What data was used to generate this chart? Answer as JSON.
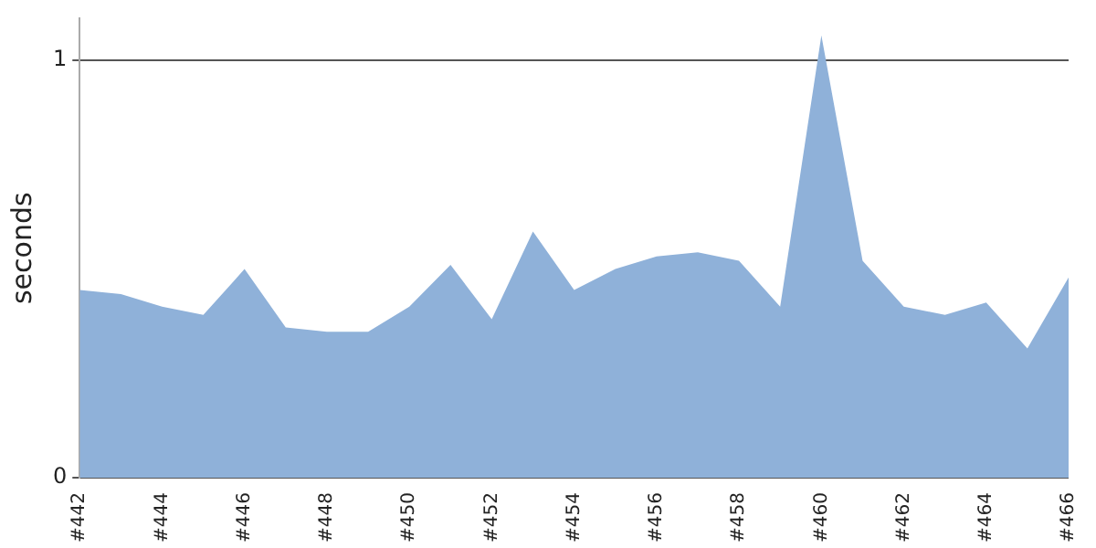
{
  "chart_data": {
    "type": "area",
    "ylabel": "seconds",
    "categories": [
      "#442",
      null,
      "#444",
      null,
      "#446",
      null,
      "#448",
      null,
      "#450",
      null,
      "#452",
      null,
      "#454",
      null,
      "#456",
      null,
      "#458",
      null,
      "#460",
      null,
      "#462",
      null,
      "#464",
      null,
      "#466"
    ],
    "series": [
      {
        "color": "#8fb1d9",
        "values": [
          0.45,
          0.44,
          0.41,
          0.39,
          0.5,
          0.36,
          0.35,
          0.35,
          0.41,
          0.51,
          0.38,
          0.59,
          0.45,
          0.5,
          0.53,
          0.54,
          0.52,
          0.41,
          1.06,
          0.52,
          0.41,
          0.39,
          0.42,
          0.31,
          0.48
        ]
      }
    ],
    "ylim": [
      0,
      1.1
    ],
    "yticks": [
      0,
      1
    ],
    "grid": "y",
    "legend": false
  }
}
